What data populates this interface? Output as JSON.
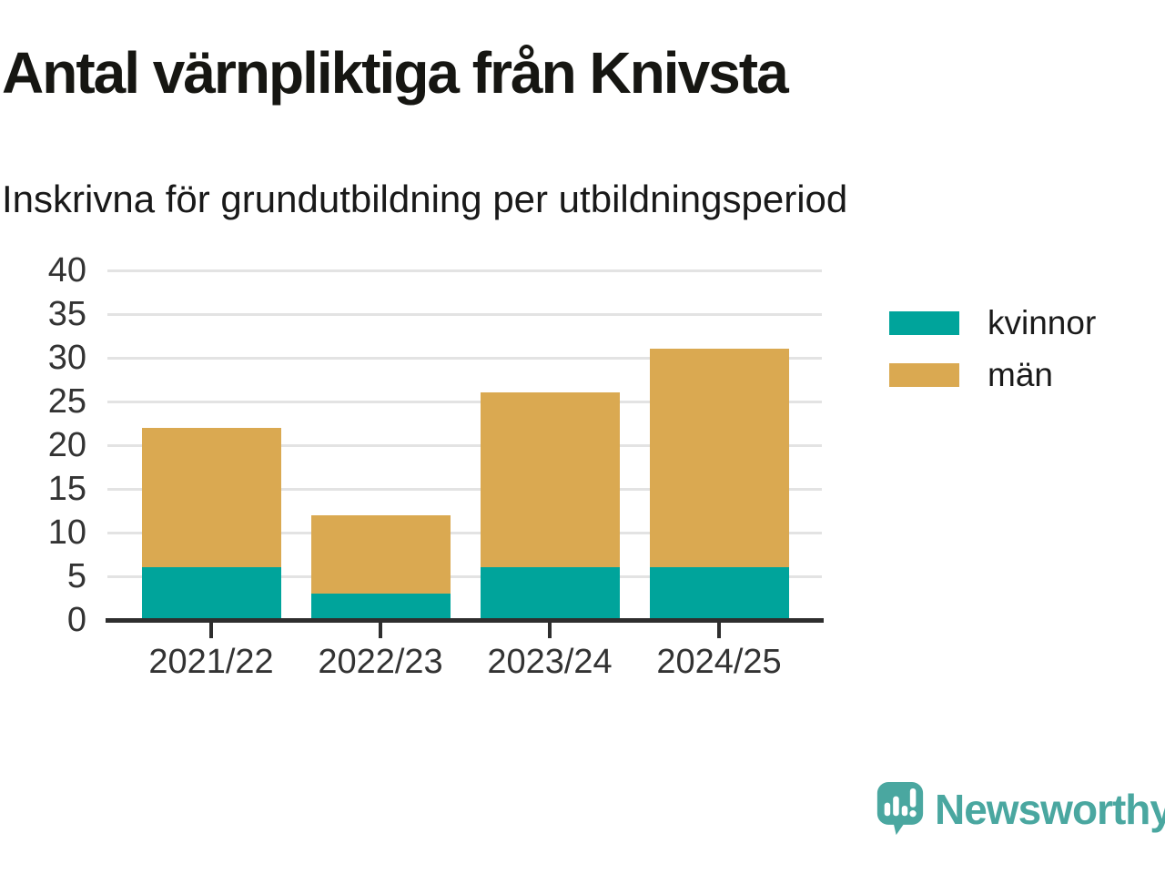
{
  "header": {
    "title": "Antal värnpliktiga från Knivsta",
    "subtitle": "Inskrivna för grundutbildning per utbildningsperiod"
  },
  "chart_data": {
    "type": "bar",
    "stacked": true,
    "categories": [
      "2021/22",
      "2022/23",
      "2023/24",
      "2024/25"
    ],
    "series": [
      {
        "name": "kvinnor",
        "color": "#00a49b",
        "values": [
          6,
          3,
          6,
          6
        ]
      },
      {
        "name": "män",
        "color": "#daa951",
        "values": [
          16,
          9,
          20,
          25
        ]
      }
    ],
    "stack_totals": [
      22,
      12,
      26,
      31
    ],
    "title": "Antal värnpliktiga från Knivsta",
    "subtitle": "Inskrivna för grundutbildning per utbildningsperiod",
    "xlabel": "",
    "ylabel": "",
    "ylim": [
      0,
      40
    ],
    "yticks": [
      0,
      5,
      10,
      15,
      20,
      25,
      30,
      35,
      40
    ],
    "grid": "horizontal",
    "legend_position": "right"
  },
  "style_colors": {
    "grid": "#e3e3e3",
    "axis": "#2e2e2e",
    "tick_label": "#333333",
    "kvinnor": "#00a49b",
    "man": "#daa951"
  },
  "footer": {
    "brand": "Newsworthy",
    "brand_color": "#4aa7a0",
    "logo_icon": "newsworthy-speech-bubble-bar-chart-icon"
  }
}
